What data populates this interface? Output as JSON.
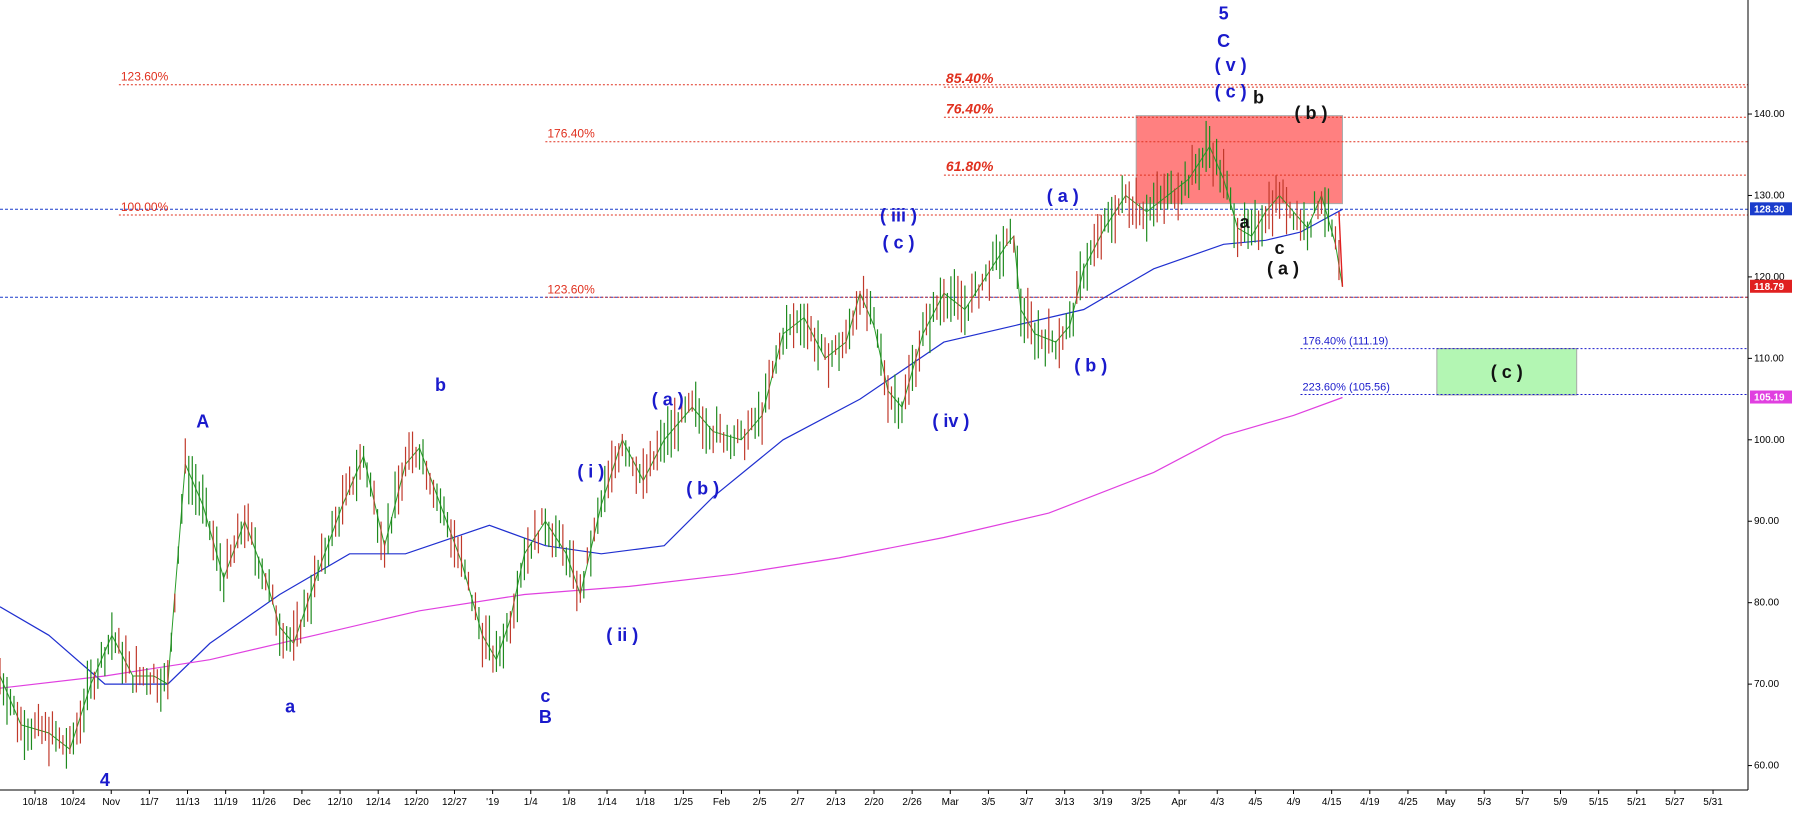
{
  "chart_data": {
    "type": "line",
    "title": "",
    "xlabel": "",
    "ylabel": "",
    "ylim": [
      57,
      154
    ],
    "y_ticks": [
      "60.00",
      "70.00",
      "80.00",
      "90.00",
      "100.00",
      "110.00",
      "120.00",
      "130.00",
      "140.00"
    ],
    "x_ticks": [
      "10/18",
      "10/24",
      "Nov",
      "11/7",
      "11/13",
      "11/19",
      "11/26",
      "Dec",
      "12/10",
      "12/14",
      "12/20",
      "12/27",
      "'19",
      "1/4",
      "1/8",
      "1/14",
      "1/18",
      "1/25",
      "Feb",
      "2/5",
      "2/7",
      "2/13",
      "2/20",
      "2/26",
      "Mar",
      "3/5",
      "3/7",
      "3/13",
      "3/19",
      "3/25",
      "Apr",
      "4/3",
      "4/5",
      "4/9",
      "4/15",
      "4/19",
      "4/25",
      "May",
      "5/3",
      "5/7",
      "5/9",
      "5/15",
      "5/21",
      "5/27",
      "5/31"
    ],
    "price_series": {
      "name": "",
      "color": "#c0392b",
      "points": [
        [
          0,
          71
        ],
        [
          6,
          65
        ],
        [
          14,
          64
        ],
        [
          20,
          62
        ],
        [
          26,
          70
        ],
        [
          32,
          76
        ],
        [
          38,
          71
        ],
        [
          44,
          71
        ],
        [
          48,
          70
        ],
        [
          50,
          81
        ],
        [
          53,
          97
        ],
        [
          58,
          92
        ],
        [
          64,
          83
        ],
        [
          70,
          90
        ],
        [
          76,
          83
        ],
        [
          80,
          77
        ],
        [
          84,
          75
        ],
        [
          88,
          80
        ],
        [
          92,
          85
        ],
        [
          98,
          92
        ],
        [
          104,
          98
        ],
        [
          110,
          87
        ],
        [
          116,
          97
        ],
        [
          120,
          99
        ],
        [
          126,
          92
        ],
        [
          132,
          85
        ],
        [
          138,
          76
        ],
        [
          142,
          73
        ],
        [
          146,
          78
        ],
        [
          150,
          86
        ],
        [
          156,
          90
        ],
        [
          162,
          86
        ],
        [
          166,
          81
        ],
        [
          172,
          92
        ],
        [
          178,
          100
        ],
        [
          184,
          95
        ],
        [
          190,
          100
        ],
        [
          198,
          104
        ],
        [
          204,
          101
        ],
        [
          212,
          100
        ],
        [
          218,
          103
        ],
        [
          224,
          113
        ],
        [
          230,
          115
        ],
        [
          236,
          110
        ],
        [
          242,
          112
        ],
        [
          246,
          118
        ],
        [
          250,
          114
        ],
        [
          254,
          106
        ],
        [
          258,
          104
        ],
        [
          264,
          113
        ],
        [
          270,
          118
        ],
        [
          276,
          116
        ],
        [
          282,
          120
        ],
        [
          288,
          124
        ],
        [
          290,
          125
        ],
        [
          292,
          116
        ],
        [
          296,
          113
        ],
        [
          302,
          112
        ],
        [
          306,
          114
        ],
        [
          310,
          121
        ],
        [
          316,
          126
        ],
        [
          322,
          130
        ],
        [
          328,
          128
        ],
        [
          334,
          130
        ],
        [
          340,
          132
        ],
        [
          346,
          136
        ],
        [
          350,
          132
        ],
        [
          354,
          126
        ],
        [
          358,
          125
        ],
        [
          362,
          128
        ],
        [
          366,
          130
        ],
        [
          370,
          128
        ],
        [
          374,
          126
        ],
        [
          378,
          130
        ],
        [
          382,
          124
        ],
        [
          384,
          118.79
        ]
      ]
    },
    "ma_series": [
      {
        "name": "",
        "color": "#2030d0",
        "points": [
          [
            0,
            79.5
          ],
          [
            14,
            76
          ],
          [
            30,
            70
          ],
          [
            48,
            70
          ],
          [
            60,
            75
          ],
          [
            80,
            81
          ],
          [
            100,
            86
          ],
          [
            116,
            86
          ],
          [
            140,
            89.5
          ],
          [
            156,
            87
          ],
          [
            172,
            86
          ],
          [
            190,
            87
          ],
          [
            204,
            93
          ],
          [
            224,
            100
          ],
          [
            246,
            105
          ],
          [
            270,
            112
          ],
          [
            290,
            114
          ],
          [
            310,
            116
          ],
          [
            330,
            121
          ],
          [
            350,
            124
          ],
          [
            362,
            124.5
          ],
          [
            372,
            125.5
          ],
          [
            384,
            128.3
          ]
        ]
      },
      {
        "name": "",
        "color": "#e040e0",
        "points": [
          [
            0,
            69.5
          ],
          [
            30,
            71
          ],
          [
            60,
            73
          ],
          [
            90,
            76
          ],
          [
            120,
            79
          ],
          [
            150,
            81
          ],
          [
            180,
            82
          ],
          [
            210,
            83.5
          ],
          [
            240,
            85.5
          ],
          [
            270,
            88
          ],
          [
            300,
            91
          ],
          [
            330,
            96
          ],
          [
            350,
            100.5
          ],
          [
            370,
            103
          ],
          [
            384,
            105.19
          ]
        ]
      }
    ],
    "price_tags": [
      {
        "value": 128.3,
        "label": "128.30",
        "color": "#1a3ccc"
      },
      {
        "value": 118.79,
        "label": "118.79",
        "color": "#e02020"
      },
      {
        "value": 105.19,
        "label": "105.19",
        "color": "#e040e0"
      }
    ],
    "fib_lines": [
      {
        "label": "123.60%",
        "value": 143.6,
        "from": 34,
        "bold": false,
        "color": "#e0301e"
      },
      {
        "label": "85.40%",
        "value": 143.3,
        "from": 270,
        "bold": true,
        "color": "#e0301e"
      },
      {
        "label": "76.40%",
        "value": 139.6,
        "from": 270,
        "bold": true,
        "color": "#e0301e"
      },
      {
        "label": "176.40%",
        "value": 136.6,
        "from": 156,
        "bold": false,
        "color": "#e0301e"
      },
      {
        "label": "61.80%",
        "value": 132.5,
        "from": 270,
        "bold": true,
        "color": "#e0301e"
      },
      {
        "label": "100.00%",
        "value": 127.6,
        "from": 34,
        "bold": false,
        "color": "#e0301e"
      },
      {
        "label": "123.60%",
        "value": 117.5,
        "from": 156,
        "bold": false,
        "color": "#e0301e"
      },
      {
        "label": "176.40% (111.19)",
        "value": 111.19,
        "from": 372,
        "bold": false,
        "color": "#1a1acc"
      },
      {
        "label": "223.60% (105.56)",
        "value": 105.56,
        "from": 372,
        "bold": false,
        "color": "#1a1acc"
      }
    ],
    "hlines": [
      {
        "value": 128.3,
        "color": "#1a3ccc"
      },
      {
        "value": 117.5,
        "color": "#1a3ccc"
      }
    ],
    "zones": [
      {
        "x0": 325,
        "x1": 384,
        "y0": 129,
        "y1": 139.8,
        "color": "#ff6b6b",
        "label": ""
      },
      {
        "x0": 411,
        "x1": 451,
        "y0": 105.5,
        "y1": 111.2,
        "color": "#a6f5a6",
        "label": "( c )"
      }
    ],
    "wave_labels": [
      {
        "text": "4",
        "x": 30,
        "y": 57.5,
        "color": "blue"
      },
      {
        "text": "A",
        "x": 58,
        "y": 101.5,
        "color": "blue"
      },
      {
        "text": "a",
        "x": 83,
        "y": 66.5,
        "color": "blue"
      },
      {
        "text": "b",
        "x": 126,
        "y": 106,
        "color": "blue"
      },
      {
        "text": "c",
        "x": 156,
        "y": 67.8,
        "color": "blue"
      },
      {
        "text": "B",
        "x": 156,
        "y": 65.2,
        "color": "blue"
      },
      {
        "text": "( i )",
        "x": 169,
        "y": 95.4,
        "color": "blue"
      },
      {
        "text": "( ii )",
        "x": 178,
        "y": 75.3,
        "color": "blue"
      },
      {
        "text": "( a )",
        "x": 191,
        "y": 104.2,
        "color": "blue"
      },
      {
        "text": "( b )",
        "x": 201,
        "y": 93.3,
        "color": "blue"
      },
      {
        "text": "( iii )",
        "x": 257,
        "y": 126.8,
        "color": "blue"
      },
      {
        "text": "( c )",
        "x": 257,
        "y": 123.5,
        "color": "blue"
      },
      {
        "text": "( iv )",
        "x": 272,
        "y": 101.6,
        "color": "blue"
      },
      {
        "text": "( a )",
        "x": 304,
        "y": 129.2,
        "color": "blue"
      },
      {
        "text": "( b )",
        "x": 312,
        "y": 108.4,
        "color": "blue"
      },
      {
        "text": "5",
        "x": 350,
        "y": 151.6,
        "color": "blue"
      },
      {
        "text": "C",
        "x": 350,
        "y": 148.2,
        "color": "blue"
      },
      {
        "text": "( v )",
        "x": 352,
        "y": 145.3,
        "color": "blue"
      },
      {
        "text": "( c )",
        "x": 352,
        "y": 142,
        "color": "blue"
      },
      {
        "text": "b",
        "x": 360,
        "y": 141.3,
        "color": "black"
      },
      {
        "text": "( b )",
        "x": 375,
        "y": 139.4,
        "color": "black"
      },
      {
        "text": "a",
        "x": 356,
        "y": 126,
        "color": "black"
      },
      {
        "text": "c",
        "x": 366,
        "y": 122.8,
        "color": "black"
      },
      {
        "text": "( a )",
        "x": 367,
        "y": 120.3,
        "color": "black"
      }
    ]
  }
}
